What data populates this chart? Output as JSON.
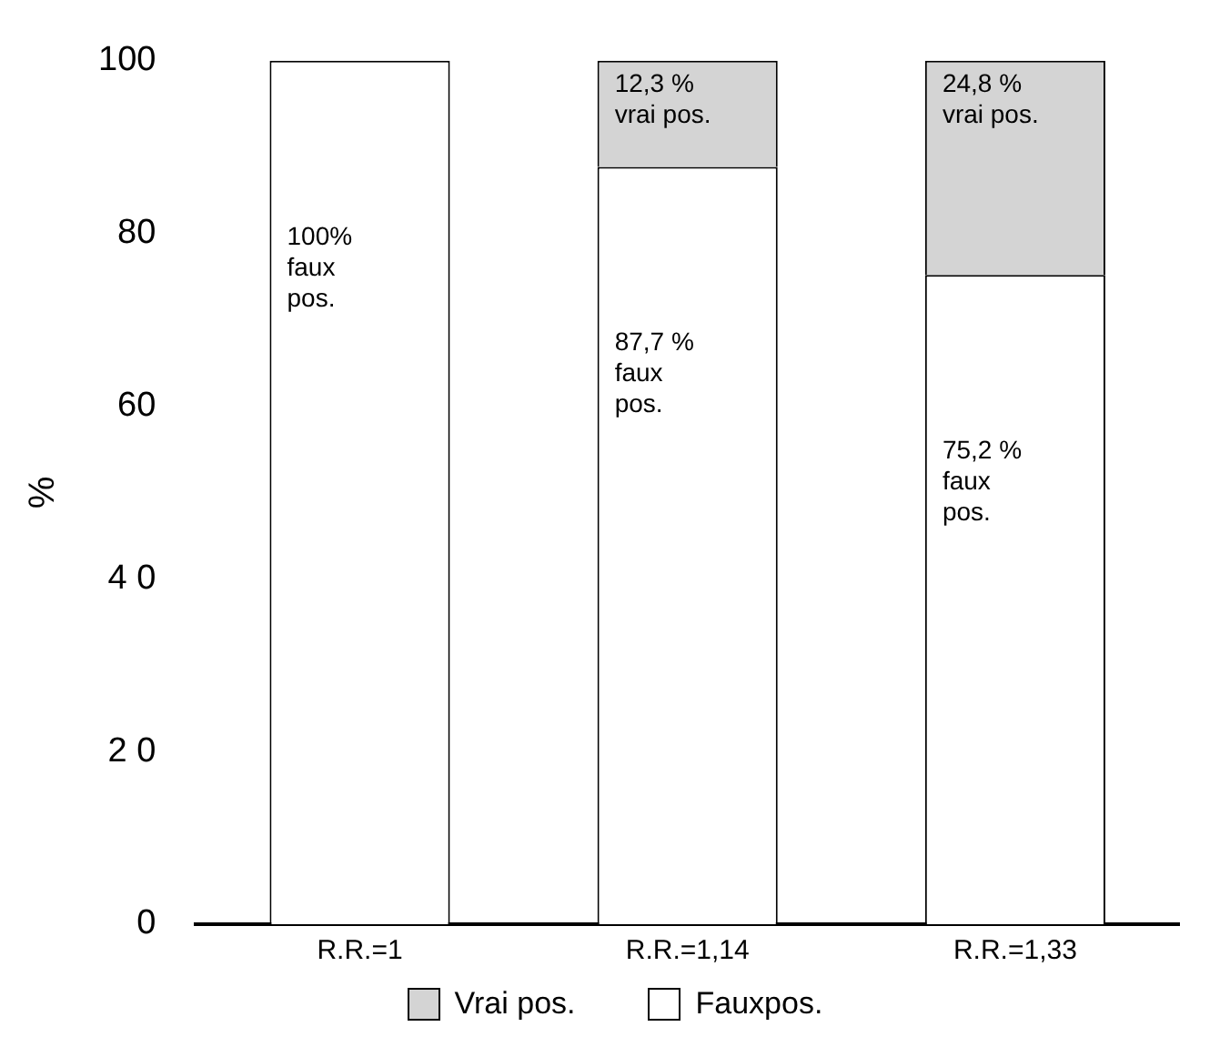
{
  "chart_data": {
    "type": "bar",
    "stacked": true,
    "ylabel": "%",
    "categories": [
      "R.R.=1",
      "R.R.=1,14",
      "R.R.=1,33"
    ],
    "series": [
      {
        "name": "Fauxpos.",
        "color": "#ffffff",
        "values": [
          100,
          87.7,
          75.2
        ],
        "value_labels": [
          "100%\nfaux\npos.",
          "87,7 %\nfaux\npos.",
          "75,2 %\nfaux\npos."
        ]
      },
      {
        "name": "Vrai pos.",
        "color": "#d4d4d4",
        "values": [
          0,
          12.3,
          24.8
        ],
        "value_labels": [
          null,
          "12,3 %\nvrai pos.",
          "24,8 %\nvrai pos."
        ]
      }
    ],
    "ylim": [
      0,
      100
    ],
    "yticks": [
      0,
      {
        "value": 20,
        "label": "2 0"
      },
      {
        "value": 40,
        "label": "4 0"
      },
      60,
      80,
      100
    ],
    "grid": false,
    "legend": "bottom"
  }
}
